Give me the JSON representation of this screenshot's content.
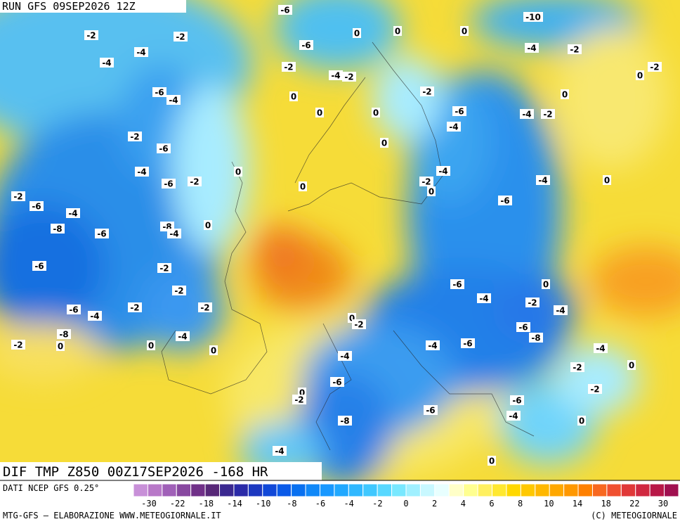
{
  "header": {
    "run": "RUN GFS 09SEP2026 12Z"
  },
  "map": {
    "title": "DIF TMP Z850 00Z17SEP2026 -168 HR",
    "contour_labels": [
      -6,
      -2,
      -2,
      -4,
      -4,
      -6,
      -2,
      -4,
      -2,
      -6,
      -4,
      0,
      0,
      0,
      0,
      -10,
      -4,
      -2,
      0,
      -2,
      0,
      -2,
      -6,
      -4,
      -2,
      -4,
      0,
      0,
      0,
      -2,
      -6,
      -4,
      0,
      0,
      -4,
      -2,
      0,
      -6,
      -2,
      -4,
      0,
      -2,
      -6,
      -4,
      -6,
      0,
      -8,
      -6,
      -8,
      -4,
      -6,
      -2,
      0,
      -6,
      -4,
      -2,
      -6,
      -4,
      -2,
      -2,
      -2,
      -4,
      0,
      -2,
      -6,
      -8,
      -8,
      -4,
      -2,
      0,
      0,
      0,
      -4,
      -6,
      -4,
      -4,
      0,
      -2,
      -6,
      -2,
      0,
      -2,
      -6,
      -6,
      -8,
      -4,
      0,
      -4,
      0
    ]
  },
  "footer": {
    "source": "DATI NCEP GFS 0.25°",
    "credit": "MTG-GFS — ELABORAZIONE WWW.METEOGIORNALE.IT",
    "copyright": "(C) METEOGIORNALE"
  },
  "colorbar": {
    "ticks": [
      -30,
      -22,
      -18,
      -14,
      -10,
      -8,
      -6,
      -4,
      -2,
      0,
      2,
      4,
      6,
      8,
      10,
      14,
      18,
      22,
      30
    ],
    "colors": [
      "#c890d8",
      "#b878c8",
      "#a060b8",
      "#8848a0",
      "#703088",
      "#582878",
      "#3a2890",
      "#2a2aa8",
      "#1c38c0",
      "#1048d8",
      "#0a5ae8",
      "#0870f0",
      "#1088f8",
      "#1898ff",
      "#20a8ff",
      "#30b8ff",
      "#40c8ff",
      "#58d8ff",
      "#78e8ff",
      "#a0f0ff",
      "#c8f8ff",
      "#e8ffff",
      "#ffffc8",
      "#ffff90",
      "#fff060",
      "#ffe830",
      "#ffd800",
      "#ffc800",
      "#ffb800",
      "#ffa800",
      "#ff9800",
      "#ff8000",
      "#f86820",
      "#f05030",
      "#e03838",
      "#d02840",
      "#b81848",
      "#a01050"
    ]
  }
}
